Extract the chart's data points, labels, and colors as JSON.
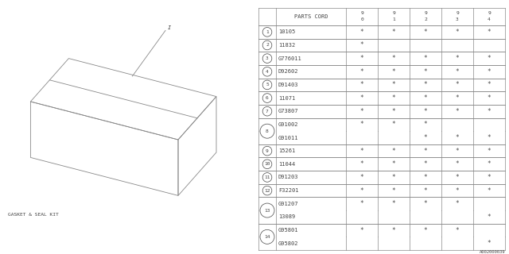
{
  "bg_color": "#ffffff",
  "diagram_label": "GASKET & SEAL KIT",
  "rows": [
    {
      "num": "1",
      "parts": [
        "10105"
      ],
      "marks": [
        [
          1,
          1,
          1,
          1,
          1
        ]
      ]
    },
    {
      "num": "2",
      "parts": [
        "11832"
      ],
      "marks": [
        [
          1,
          0,
          0,
          0,
          0
        ]
      ]
    },
    {
      "num": "3",
      "parts": [
        "G776011"
      ],
      "marks": [
        [
          1,
          1,
          1,
          1,
          1
        ]
      ]
    },
    {
      "num": "4",
      "parts": [
        "D92602"
      ],
      "marks": [
        [
          1,
          1,
          1,
          1,
          1
        ]
      ]
    },
    {
      "num": "5",
      "parts": [
        "D91403"
      ],
      "marks": [
        [
          1,
          1,
          1,
          1,
          1
        ]
      ]
    },
    {
      "num": "6",
      "parts": [
        "11071"
      ],
      "marks": [
        [
          1,
          1,
          1,
          1,
          1
        ]
      ]
    },
    {
      "num": "7",
      "parts": [
        "G73807"
      ],
      "marks": [
        [
          1,
          1,
          1,
          1,
          1
        ]
      ]
    },
    {
      "num": "8",
      "parts": [
        "G91002",
        "G91011"
      ],
      "marks": [
        [
          1,
          1,
          1,
          0,
          0
        ],
        [
          0,
          0,
          1,
          1,
          1
        ]
      ]
    },
    {
      "num": "9",
      "parts": [
        "15261"
      ],
      "marks": [
        [
          1,
          1,
          1,
          1,
          1
        ]
      ]
    },
    {
      "num": "10",
      "parts": [
        "11044"
      ],
      "marks": [
        [
          1,
          1,
          1,
          1,
          1
        ]
      ]
    },
    {
      "num": "11",
      "parts": [
        "D91203"
      ],
      "marks": [
        [
          1,
          1,
          1,
          1,
          1
        ]
      ]
    },
    {
      "num": "12",
      "parts": [
        "F32201"
      ],
      "marks": [
        [
          1,
          1,
          1,
          1,
          1
        ]
      ]
    },
    {
      "num": "13",
      "parts": [
        "G91207",
        "13089"
      ],
      "marks": [
        [
          1,
          1,
          1,
          1,
          0
        ],
        [
          0,
          0,
          0,
          0,
          1
        ]
      ]
    },
    {
      "num": "14",
      "parts": [
        "G95801",
        "G95802"
      ],
      "marks": [
        [
          1,
          1,
          1,
          1,
          0
        ],
        [
          0,
          0,
          0,
          0,
          1
        ]
      ]
    }
  ],
  "year_headers": [
    [
      "9",
      "0"
    ],
    [
      "9",
      "1"
    ],
    [
      "9",
      "2"
    ],
    [
      "9",
      "3"
    ],
    [
      "9",
      "4"
    ]
  ],
  "footnote": "A002000039",
  "line_color": "#888888",
  "text_color": "#444444"
}
